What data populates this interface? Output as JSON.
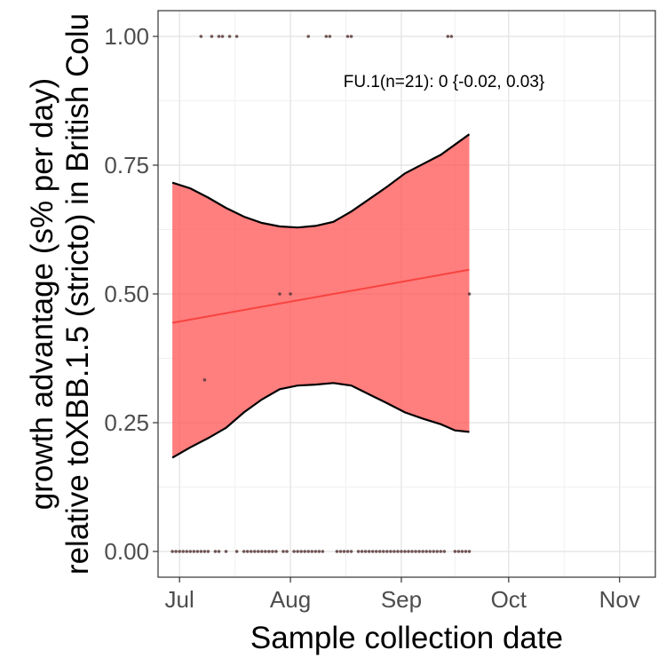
{
  "chart_data": {
    "type": "line",
    "xlabel": "Sample collection date",
    "ylabel": "growth advantage (s% per day)",
    "ylabel_line2": "relative toXBB.1.5 (stricto) in British Colu",
    "x_ticks": [
      {
        "label": "Jul",
        "date": "2023-07-01"
      },
      {
        "label": "Aug",
        "date": "2023-08-01"
      },
      {
        "label": "Sep",
        "date": "2023-09-01"
      },
      {
        "label": "Oct",
        "date": "2023-10-01"
      },
      {
        "label": "Nov",
        "date": "2023-11-01"
      }
    ],
    "y_ticks": [
      {
        "label": "0.00",
        "value": 0
      },
      {
        "label": "0.25",
        "value": 0.25
      },
      {
        "label": "0.50",
        "value": 0.5
      },
      {
        "label": "0.75",
        "value": 0.75
      },
      {
        "label": "1.00",
        "value": 1
      }
    ],
    "xlim": [
      "2023-06-25",
      "2023-11-11"
    ],
    "ylim": [
      -0.05,
      1.05
    ],
    "grid": true,
    "annotation": "FU.1(n=21): 0 {-0.02, 0.03}",
    "colors": {
      "band": "#ff5a5a",
      "trend": "#f8433f",
      "points": "#5a3a3a",
      "outline": "#000000"
    },
    "trend": {
      "x": [
        "2023-06-29",
        "2023-09-20"
      ],
      "y": [
        0.444,
        0.547
      ]
    },
    "ribbon": {
      "x": [
        "2023-06-29",
        "2023-07-04",
        "2023-07-09",
        "2023-07-14",
        "2023-07-19",
        "2023-07-24",
        "2023-07-29",
        "2023-08-03",
        "2023-08-08",
        "2023-08-13",
        "2023-08-18",
        "2023-08-23",
        "2023-08-28",
        "2023-09-02",
        "2023-09-07",
        "2023-09-12",
        "2023-09-16",
        "2023-09-20"
      ],
      "upper": [
        0.716,
        0.705,
        0.687,
        0.667,
        0.65,
        0.638,
        0.631,
        0.629,
        0.632,
        0.64,
        0.66,
        0.684,
        0.708,
        0.734,
        0.752,
        0.77,
        0.79,
        0.81
      ],
      "lower": [
        0.182,
        0.202,
        0.22,
        0.24,
        0.27,
        0.295,
        0.315,
        0.322,
        0.324,
        0.327,
        0.322,
        0.305,
        0.288,
        0.27,
        0.258,
        0.247,
        0.235,
        0.232
      ]
    },
    "points": {
      "x": [
        "2023-07-07",
        "2023-07-10",
        "2023-07-12",
        "2023-07-13",
        "2023-07-15",
        "2023-07-17",
        "2023-08-06",
        "2023-08-11",
        "2023-08-12",
        "2023-08-17",
        "2023-08-18",
        "2023-09-14",
        "2023-09-15",
        "2023-07-29",
        "2023-08-01",
        "2023-09-20",
        "2023-07-08",
        "2023-06-29",
        "2023-06-30",
        "2023-07-01",
        "2023-07-02",
        "2023-07-03",
        "2023-07-04",
        "2023-07-05",
        "2023-07-06",
        "2023-07-07",
        "2023-07-08",
        "2023-07-09",
        "2023-07-11",
        "2023-07-12",
        "2023-07-14",
        "2023-07-17",
        "2023-07-19",
        "2023-07-20",
        "2023-07-21",
        "2023-07-22",
        "2023-07-23",
        "2023-07-24",
        "2023-07-25",
        "2023-07-26",
        "2023-07-27",
        "2023-07-28",
        "2023-07-30",
        "2023-07-31",
        "2023-08-02",
        "2023-08-03",
        "2023-08-04",
        "2023-08-05",
        "2023-08-06",
        "2023-08-07",
        "2023-08-08",
        "2023-08-09",
        "2023-08-10",
        "2023-08-14",
        "2023-08-15",
        "2023-08-16",
        "2023-08-17",
        "2023-08-18",
        "2023-08-20",
        "2023-08-21",
        "2023-08-22",
        "2023-08-23",
        "2023-08-24",
        "2023-08-25",
        "2023-08-26",
        "2023-08-27",
        "2023-08-28",
        "2023-08-29",
        "2023-08-30",
        "2023-08-31",
        "2023-09-01",
        "2023-09-02",
        "2023-09-03",
        "2023-09-04",
        "2023-09-05",
        "2023-09-06",
        "2023-09-07",
        "2023-09-08",
        "2023-09-09",
        "2023-09-10",
        "2023-09-11",
        "2023-09-12",
        "2023-09-13",
        "2023-09-16",
        "2023-09-17",
        "2023-09-18",
        "2023-09-19",
        "2023-09-20"
      ],
      "y": [
        1,
        1,
        1,
        1,
        1,
        1,
        1,
        1,
        1,
        1,
        1,
        1,
        1,
        0.5,
        0.5,
        0.5,
        0.333,
        0,
        0,
        0,
        0,
        0,
        0,
        0,
        0,
        0,
        0,
        0,
        0,
        0,
        0,
        0,
        0,
        0,
        0,
        0,
        0,
        0,
        0,
        0,
        0,
        0,
        0,
        0,
        0,
        0,
        0,
        0,
        0,
        0,
        0,
        0,
        0,
        0,
        0,
        0,
        0,
        0,
        0,
        0,
        0,
        0,
        0,
        0,
        0,
        0,
        0,
        0,
        0,
        0,
        0,
        0,
        0,
        0,
        0,
        0,
        0,
        0,
        0,
        0,
        0,
        0,
        0,
        0,
        0,
        0,
        0,
        0
      ]
    }
  }
}
